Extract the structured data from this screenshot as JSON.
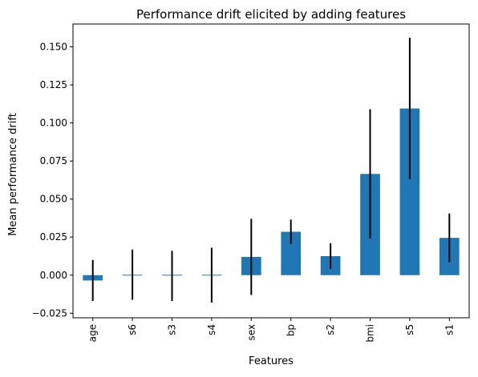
{
  "chart_data": {
    "type": "bar",
    "title": "Performance drift elicited by adding features",
    "xlabel": "Features",
    "ylabel": "Mean performance drift",
    "categories": [
      "age",
      "s6",
      "s3",
      "s4",
      "sex",
      "bp",
      "s2",
      "bmi",
      "s5",
      "s1"
    ],
    "values": [
      -0.0035,
      0.0003,
      -0.0005,
      0.0,
      0.012,
      0.0285,
      0.0125,
      0.0665,
      0.1095,
      0.0245
    ],
    "errors": [
      0.0135,
      0.0165,
      0.0165,
      0.018,
      0.025,
      0.008,
      0.0085,
      0.0425,
      0.0465,
      0.016
    ],
    "ylim": [
      -0.028,
      0.165
    ],
    "yticks": [
      -0.025,
      0.0,
      0.025,
      0.05,
      0.075,
      0.1,
      0.125,
      0.15
    ],
    "ytick_labels": [
      "−0.025",
      "0.000",
      "0.025",
      "0.050",
      "0.075",
      "0.100",
      "0.125",
      "0.150"
    ],
    "grid": false,
    "legend": false,
    "bar_color": "#1f77b4",
    "error_color": "#000000"
  }
}
